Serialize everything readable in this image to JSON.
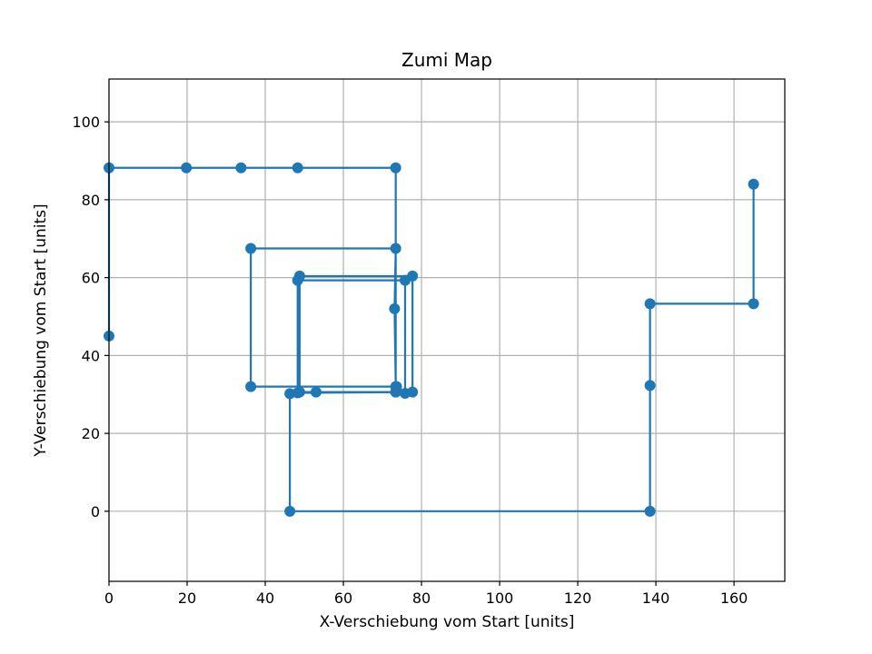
{
  "chart_data": {
    "type": "line",
    "title": "Zumi Map",
    "xlabel": "X-Verschiebung vom Start [units]",
    "ylabel": "Y-Verschiebung vom Start [units]",
    "xlim": [
      0,
      173
    ],
    "ylim": [
      -18,
      111
    ],
    "xticks": [
      0,
      20,
      40,
      60,
      80,
      100,
      120,
      140,
      160
    ],
    "yticks": [
      0,
      20,
      40,
      60,
      80,
      100
    ],
    "grid": true,
    "series": [
      {
        "color": "#1f77b4",
        "marker": "circle",
        "points": [
          [
            165,
            84
          ],
          [
            165,
            53.3
          ],
          [
            138.5,
            53.3
          ],
          [
            138.5,
            32.3
          ],
          [
            138.5,
            0
          ],
          [
            46.3,
            0
          ],
          [
            46.3,
            30.2
          ],
          [
            53,
            30.6
          ],
          [
            73.4,
            30.6
          ],
          [
            73.4,
            32
          ],
          [
            73.1,
            52
          ],
          [
            73.4,
            67.5
          ],
          [
            36.3,
            67.5
          ],
          [
            36.3,
            32
          ],
          [
            73.6,
            32
          ],
          [
            75.8,
            30.3
          ],
          [
            75.8,
            59.3
          ],
          [
            48.3,
            59.3
          ],
          [
            48.3,
            30.4
          ],
          [
            77.7,
            30.6
          ],
          [
            77.7,
            60.4
          ],
          [
            48.8,
            60.4
          ],
          [
            48.8,
            30.6
          ],
          [
            73.4,
            30.6
          ],
          [
            73.4,
            88.2
          ],
          [
            48.3,
            88.2
          ],
          [
            33.8,
            88.2
          ],
          [
            19.8,
            88.2
          ],
          [
            0,
            88.2
          ],
          [
            0,
            45
          ]
        ]
      }
    ]
  }
}
